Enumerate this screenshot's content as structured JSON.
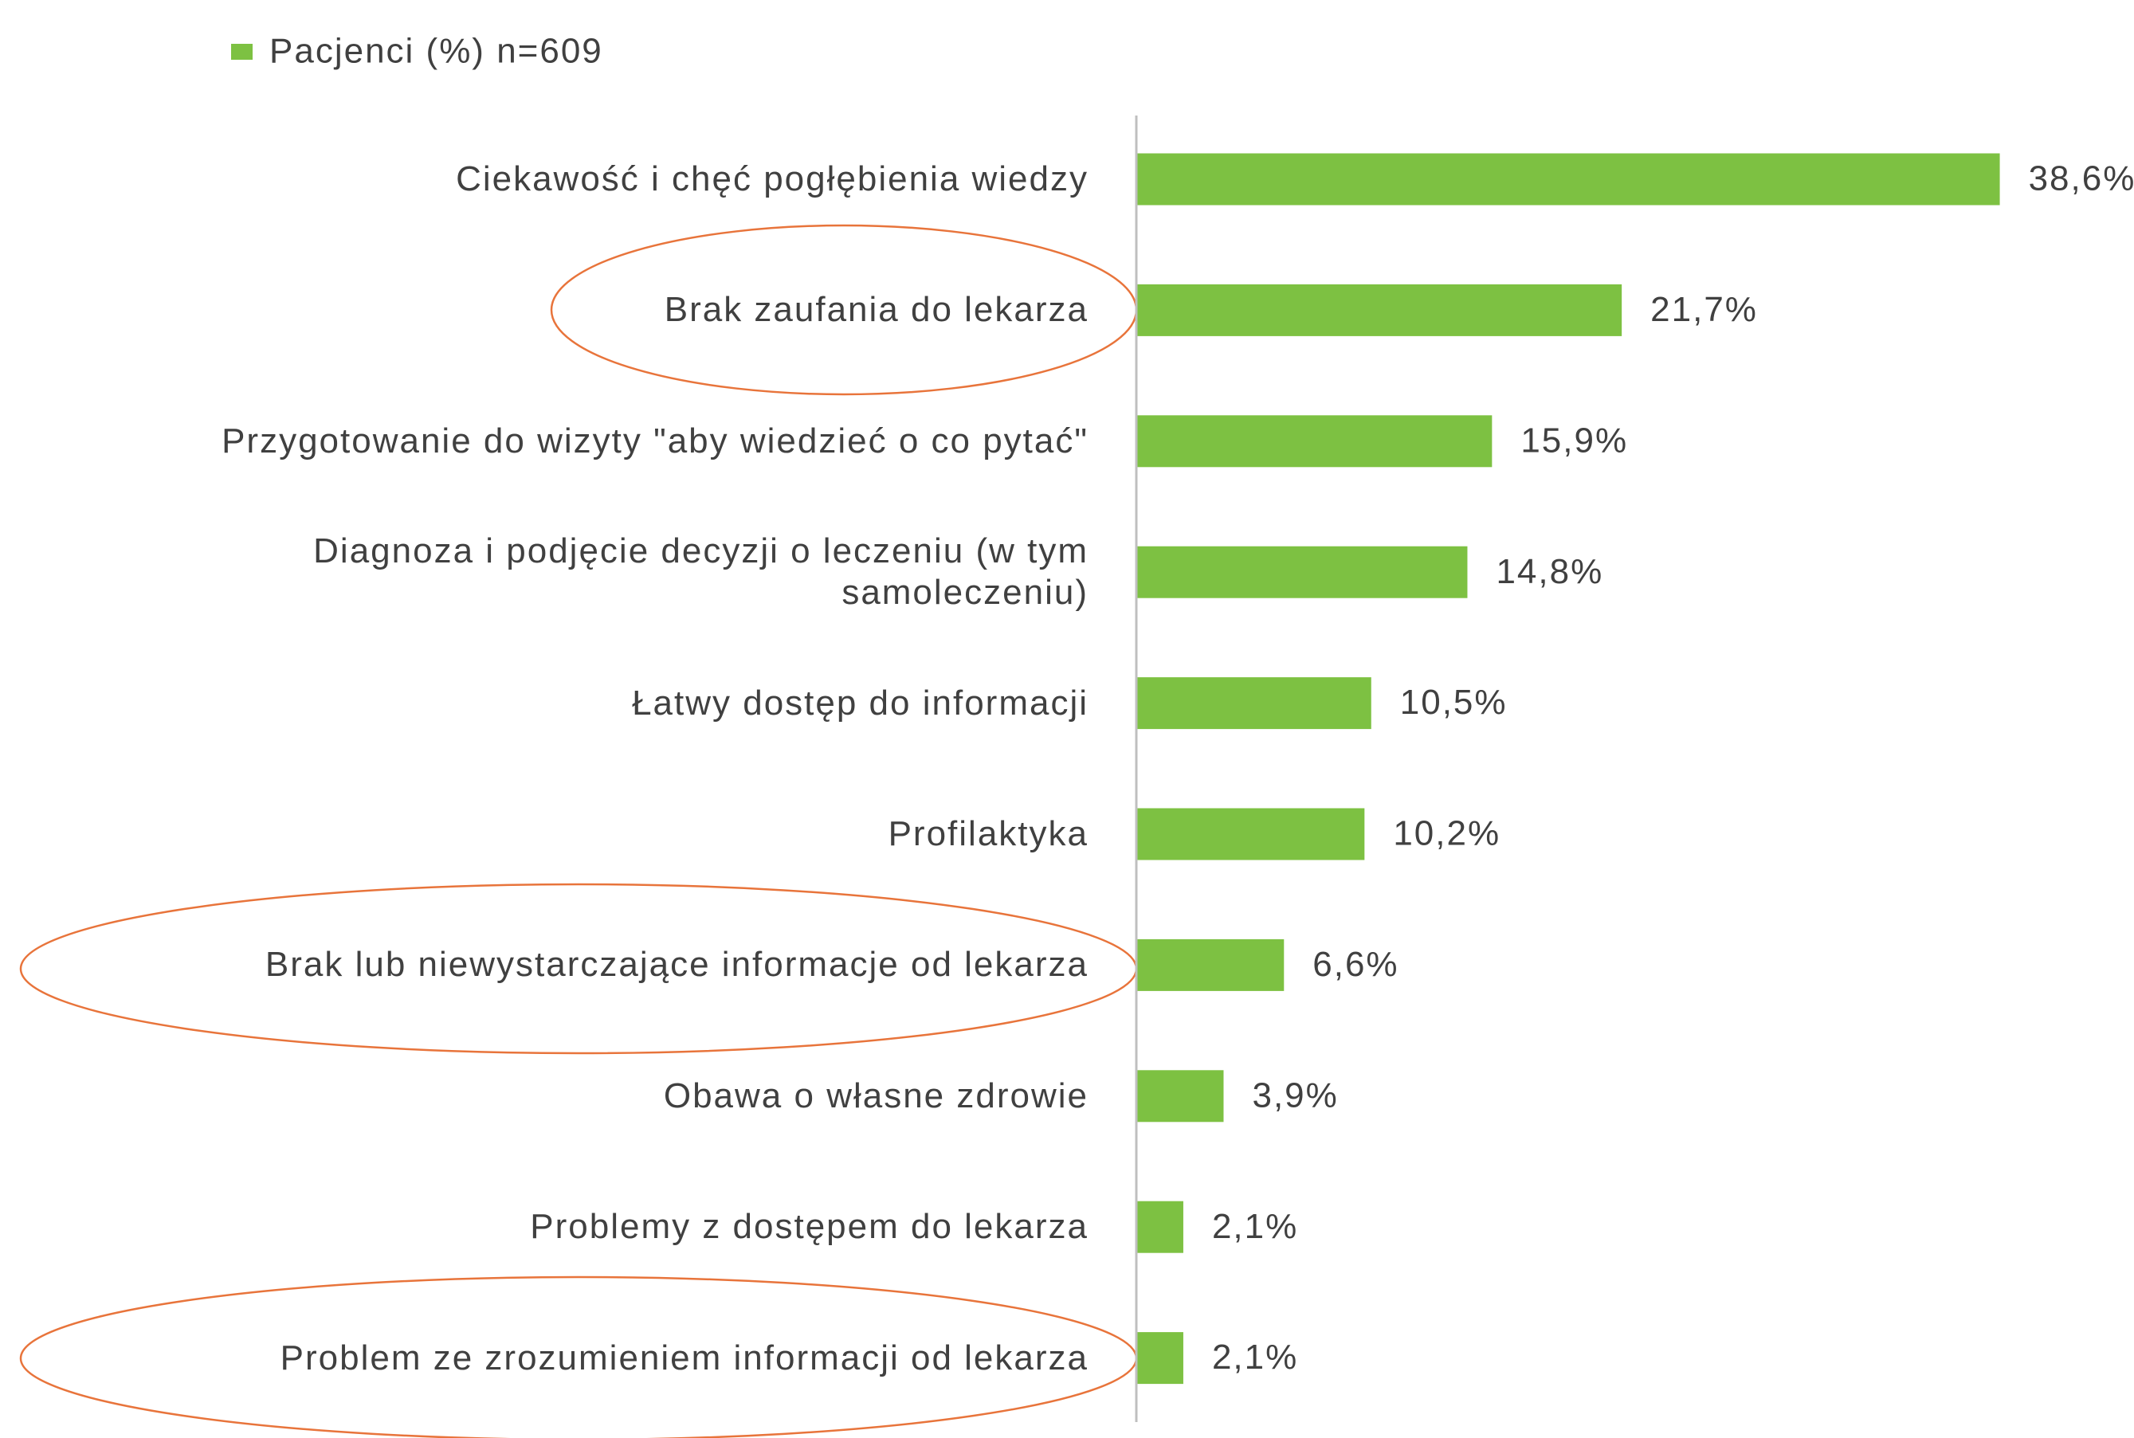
{
  "chart_data": {
    "type": "barh",
    "categories": [
      "Ciekawość i chęć pogłębienia wiedzy",
      "Brak zaufania do lekarza",
      "Przygotowanie do wizyty \"aby wiedzieć o co pytać\"",
      "Diagnoza i podjęcie decyzji o leczeniu (w tym samoleczeniu)",
      "Łatwy dostęp do informacji",
      "Profilaktyka",
      "Brak lub niewystarczające informacje od lekarza",
      "Obawa o własne zdrowie",
      "Problemy z dostępem do lekarza",
      "Problem ze zrozumieniem informacji od lekarza"
    ],
    "series": [
      {
        "name": "Pacjenci (%) n=609",
        "color": "#7dc142",
        "values": [
          38.6,
          21.7,
          15.9,
          14.8,
          10.5,
          10.2,
          6.6,
          3.9,
          2.1,
          2.1
        ],
        "value_labels": [
          "38,6%",
          "21,7%",
          "15,9%",
          "14,8%",
          "10,5%",
          "10,2%",
          "6,6%",
          "3,9%",
          "2,1%",
          "2,1%"
        ]
      }
    ],
    "xlim": [
      0,
      44.6
    ],
    "legend": "top-left"
  }
}
